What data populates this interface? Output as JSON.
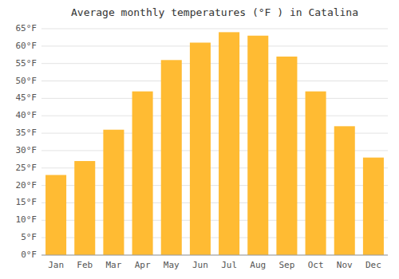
{
  "chart_data": {
    "type": "bar",
    "title": "Average monthly temperatures (°F ) in Catalina",
    "categories": [
      "Jan",
      "Feb",
      "Mar",
      "Apr",
      "May",
      "Jun",
      "Jul",
      "Aug",
      "Sep",
      "Oct",
      "Nov",
      "Dec"
    ],
    "values": [
      23,
      27,
      36,
      47,
      56,
      61,
      64,
      63,
      57,
      47,
      37,
      28
    ],
    "color": "#FFBB33",
    "ylim": [
      0,
      65
    ],
    "yticks": [
      {
        "value": 0,
        "label": "0°F"
      },
      {
        "value": 5,
        "label": "5°F"
      },
      {
        "value": 10,
        "label": "10°F"
      },
      {
        "value": 15,
        "label": "15°F"
      },
      {
        "value": 20,
        "label": "20°F"
      },
      {
        "value": 25,
        "label": "25°F"
      },
      {
        "value": 30,
        "label": "30°F"
      },
      {
        "value": 35,
        "label": "35°F"
      },
      {
        "value": 40,
        "label": "40°F"
      },
      {
        "value": 45,
        "label": "45°F"
      },
      {
        "value": 50,
        "label": "50°F"
      },
      {
        "value": 55,
        "label": "55°F"
      },
      {
        "value": 60,
        "label": "60°F"
      },
      {
        "value": 65,
        "label": "65°F"
      }
    ],
    "grid": true
  }
}
